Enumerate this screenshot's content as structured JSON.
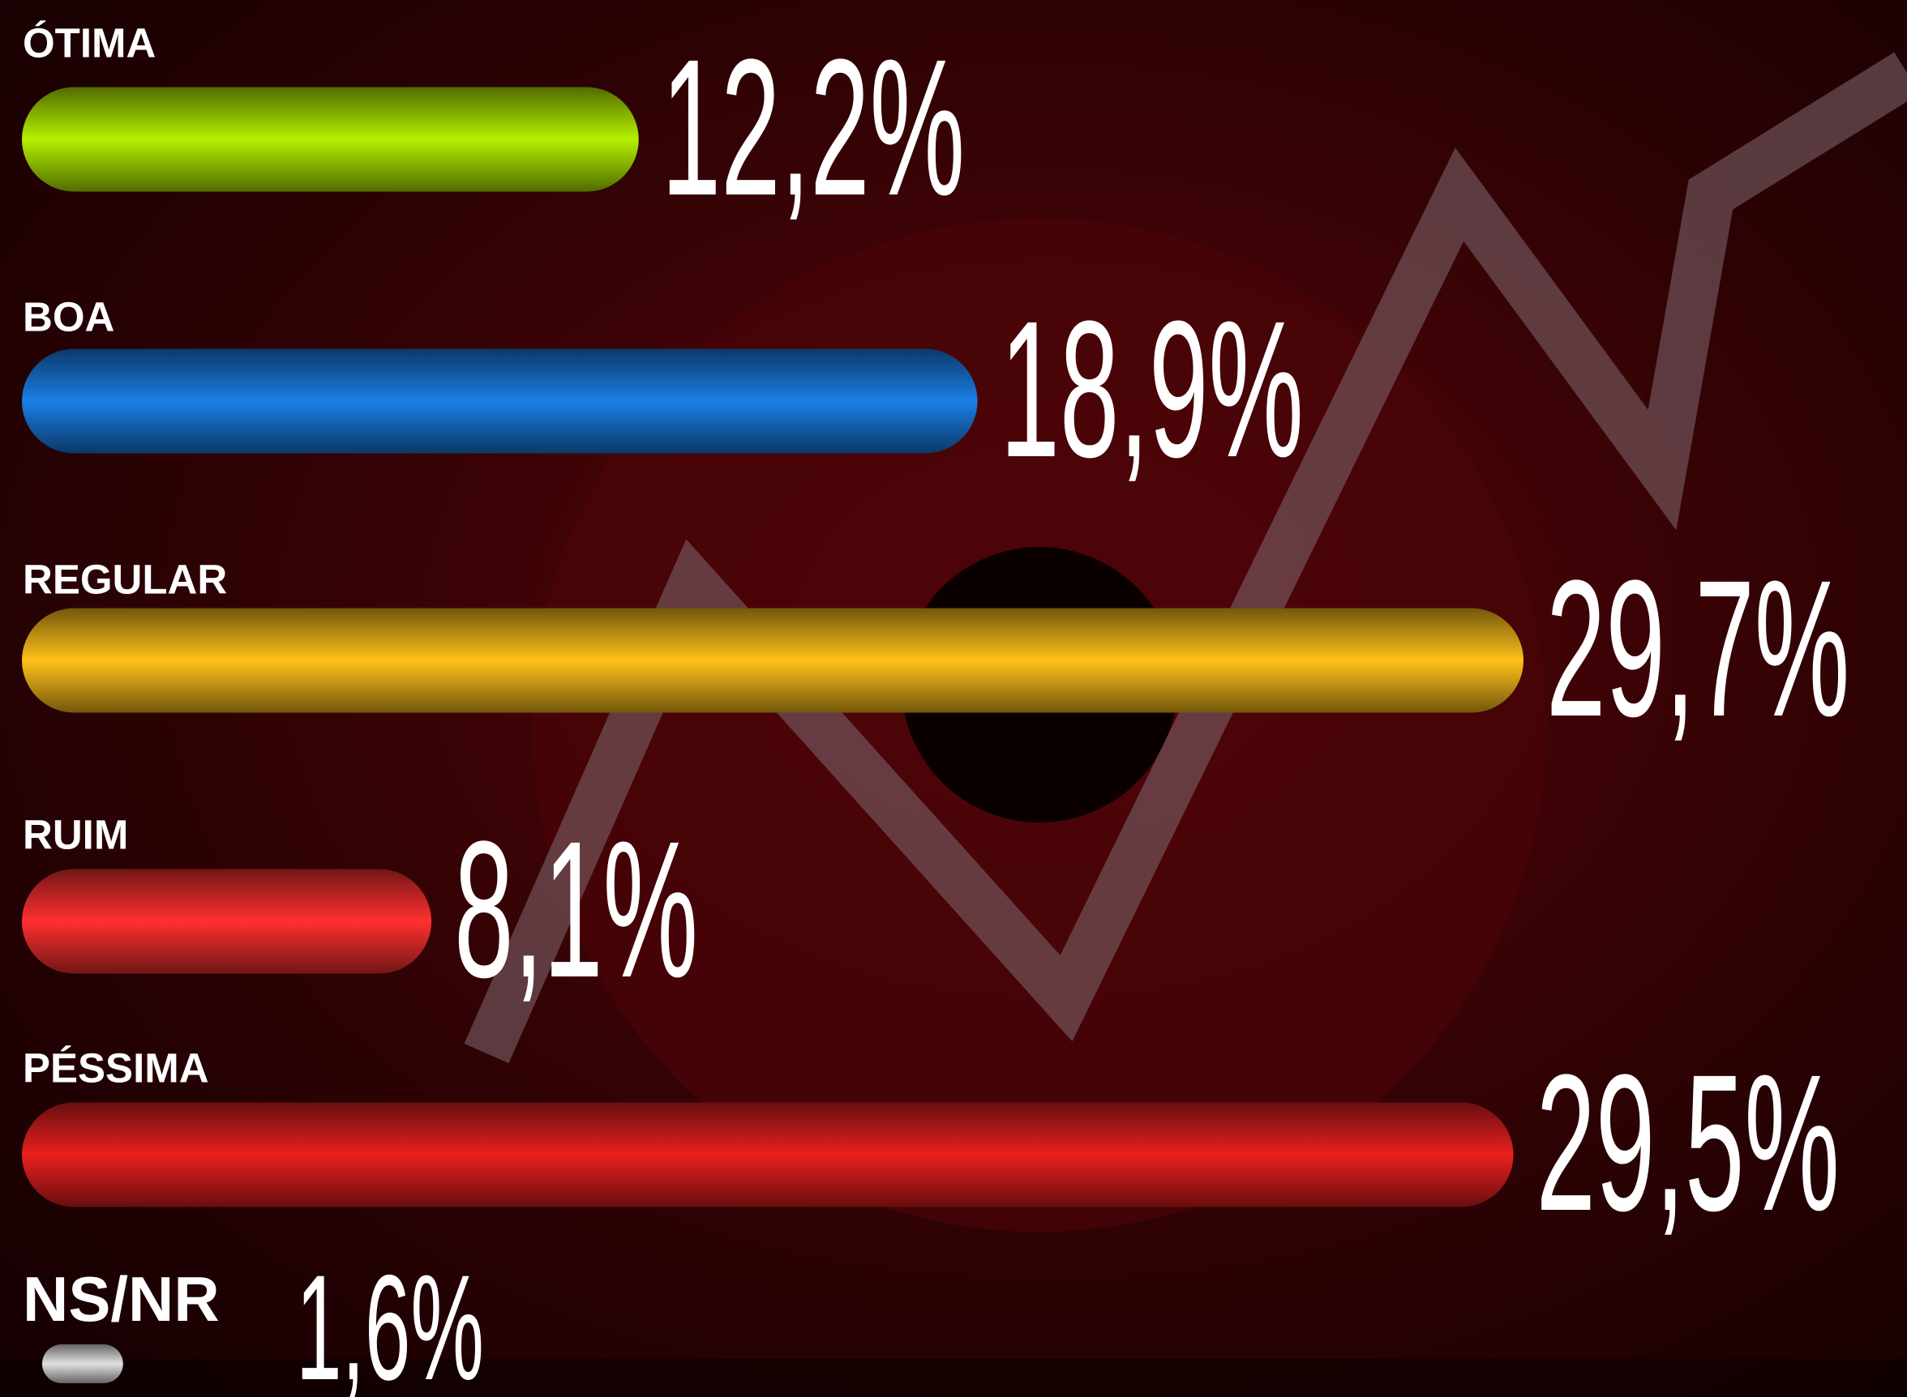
{
  "chart_data": {
    "type": "bar",
    "orientation": "horizontal",
    "categories": [
      "ÓTIMA",
      "BOA",
      "REGULAR",
      "RUIM",
      "PÉSSIMA",
      "NS/NR"
    ],
    "values": [
      12.2,
      18.9,
      29.7,
      8.1,
      29.5,
      1.6
    ],
    "value_labels": [
      "12,2%",
      "18,9%",
      "29,7%",
      "8,1%",
      "29,5%",
      "1,6%"
    ],
    "colors": [
      "#b4f000",
      "#1a7ee6",
      "#ffc21a",
      "#ff3030",
      "#e8201e",
      "#e0e0e0"
    ]
  }
}
